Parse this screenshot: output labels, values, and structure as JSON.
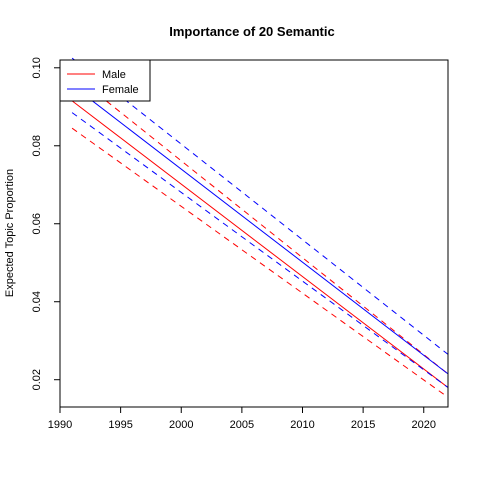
{
  "chart_data": {
    "type": "line",
    "title": "Importance of 20 Semantic",
    "xlabel": "",
    "ylabel": "Expected Topic Proportion",
    "xlim": [
      1990,
      2022
    ],
    "ylim": [
      0.013,
      0.102
    ],
    "x_ticks": [
      1990,
      1995,
      2000,
      2005,
      2010,
      2015,
      2020
    ],
    "y_ticks": [
      0.02,
      0.04,
      0.06,
      0.08,
      0.1
    ],
    "y_tick_labels": [
      "0.02",
      "0.04",
      "0.06",
      "0.08",
      "0.10"
    ],
    "grid": false,
    "legend_position": "top-left",
    "series": [
      {
        "name": "Male",
        "color": "#ff0000",
        "x": [
          1991,
          2022
        ],
        "values": [
          0.0915,
          0.018
        ],
        "lower": [
          0.0845,
          0.0155
        ],
        "upper": [
          0.0985,
          0.0215
        ]
      },
      {
        "name": "Female",
        "color": "#0000ff",
        "x": [
          1991,
          2022
        ],
        "values": [
          0.0955,
          0.0215
        ],
        "lower": [
          0.0885,
          0.018
        ],
        "upper": [
          0.1025,
          0.0265
        ]
      }
    ]
  }
}
